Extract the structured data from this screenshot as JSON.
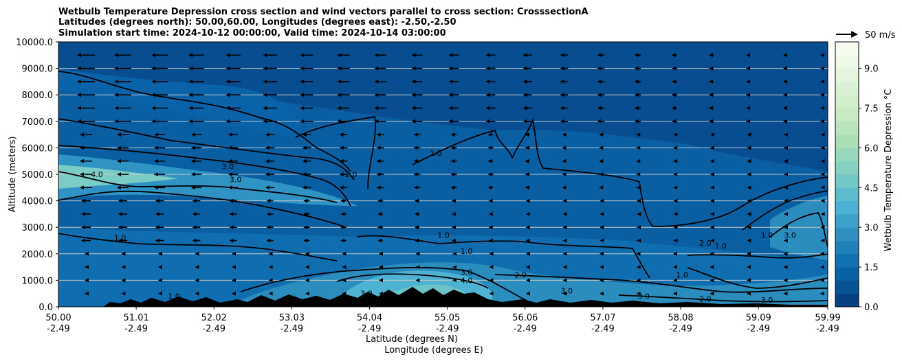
{
  "chart_data": {
    "type": "heatmap",
    "title_lines": [
      "Wetbulb Temperature Depression cross section and wind vectors parallel to cross section: CrosssectionA",
      "Latitudes (degrees north): 50.00,60.00, Longitudes (degrees east): -2.50,-2.50",
      "Simulation start time: 2024-10-12 00:00:00, Valid time: 2024-10-14 03:00:00"
    ],
    "xlabel_lines": [
      "Latitude (degrees N)",
      "Longitude (degrees E)"
    ],
    "ylabel": "Altitude (meters)",
    "x_ticks": [
      {
        "lat": "50.00",
        "lon": "-2.49"
      },
      {
        "lat": "51.01",
        "lon": "-2.49"
      },
      {
        "lat": "52.02",
        "lon": "-2.49"
      },
      {
        "lat": "53.03",
        "lon": "-2.49"
      },
      {
        "lat": "54.04",
        "lon": "-2.49"
      },
      {
        "lat": "55.05",
        "lon": "-2.49"
      },
      {
        "lat": "56.06",
        "lon": "-2.49"
      },
      {
        "lat": "57.07",
        "lon": "-2.49"
      },
      {
        "lat": "58.08",
        "lon": "-2.49"
      },
      {
        "lat": "59.09",
        "lon": "-2.49"
      },
      {
        "lat": "59.99",
        "lon": "-2.49"
      }
    ],
    "xlim": [
      50.0,
      59.99
    ],
    "y_ticks": [
      "0.0",
      "1000.0",
      "2000.0",
      "3000.0",
      "4000.0",
      "5000.0",
      "6000.0",
      "7000.0",
      "8000.0",
      "9000.0",
      "10000.0"
    ],
    "ylim": [
      0,
      10000
    ],
    "horizontal_grid": true,
    "colorbar": {
      "label": "Wetbulb Temperature Depression °C",
      "ticks": [
        "0.0",
        "1.5",
        "3.0",
        "4.5",
        "6.0",
        "7.5",
        "9.0"
      ],
      "range": [
        0,
        10
      ],
      "colormap": [
        "#084081",
        "#0868ac",
        "#2b8cbe",
        "#4eb3d3",
        "#7bccc4",
        "#a8ddb5",
        "#ccebc5",
        "#e0f3db",
        "#f7fcf0"
      ]
    },
    "vector_key": {
      "label": "50 m/s",
      "value": 50
    },
    "contour_labels": [
      {
        "lat": 51.5,
        "alt": 300,
        "text": "1.0"
      },
      {
        "lat": 50.8,
        "alt": 2500,
        "text": "1.0"
      },
      {
        "lat": 50.5,
        "alt": 4900,
        "text": "4.0"
      },
      {
        "lat": 52.2,
        "alt": 5200,
        "text": "3.0"
      },
      {
        "lat": 52.3,
        "alt": 4700,
        "text": "3.0"
      },
      {
        "lat": 53.8,
        "alt": 4900,
        "text": "2.0"
      },
      {
        "lat": 54.9,
        "alt": 5700,
        "text": "1.0"
      },
      {
        "lat": 55.0,
        "alt": 2600,
        "text": "1.0"
      },
      {
        "lat": 55.3,
        "alt": 2000,
        "text": "1.0"
      },
      {
        "lat": 55.3,
        "alt": 1200,
        "text": "3.0"
      },
      {
        "lat": 55.3,
        "alt": 900,
        "text": "4.0"
      },
      {
        "lat": 54.0,
        "alt": 400,
        "text": "3.0"
      },
      {
        "lat": 56.0,
        "alt": 1100,
        "text": "2.0"
      },
      {
        "lat": 56.6,
        "alt": 500,
        "text": "3.0"
      },
      {
        "lat": 57.6,
        "alt": 300,
        "text": "3.0"
      },
      {
        "lat": 58.4,
        "alt": 2300,
        "text": "2.0"
      },
      {
        "lat": 58.6,
        "alt": 2200,
        "text": "1.0"
      },
      {
        "lat": 58.1,
        "alt": 1100,
        "text": "1.0"
      },
      {
        "lat": 59.2,
        "alt": 2600,
        "text": "1.0"
      },
      {
        "lat": 59.5,
        "alt": 2600,
        "text": "3.0"
      },
      {
        "lat": 58.4,
        "alt": 200,
        "text": "2.0"
      },
      {
        "lat": 59.2,
        "alt": 150,
        "text": "3.0"
      }
    ]
  }
}
